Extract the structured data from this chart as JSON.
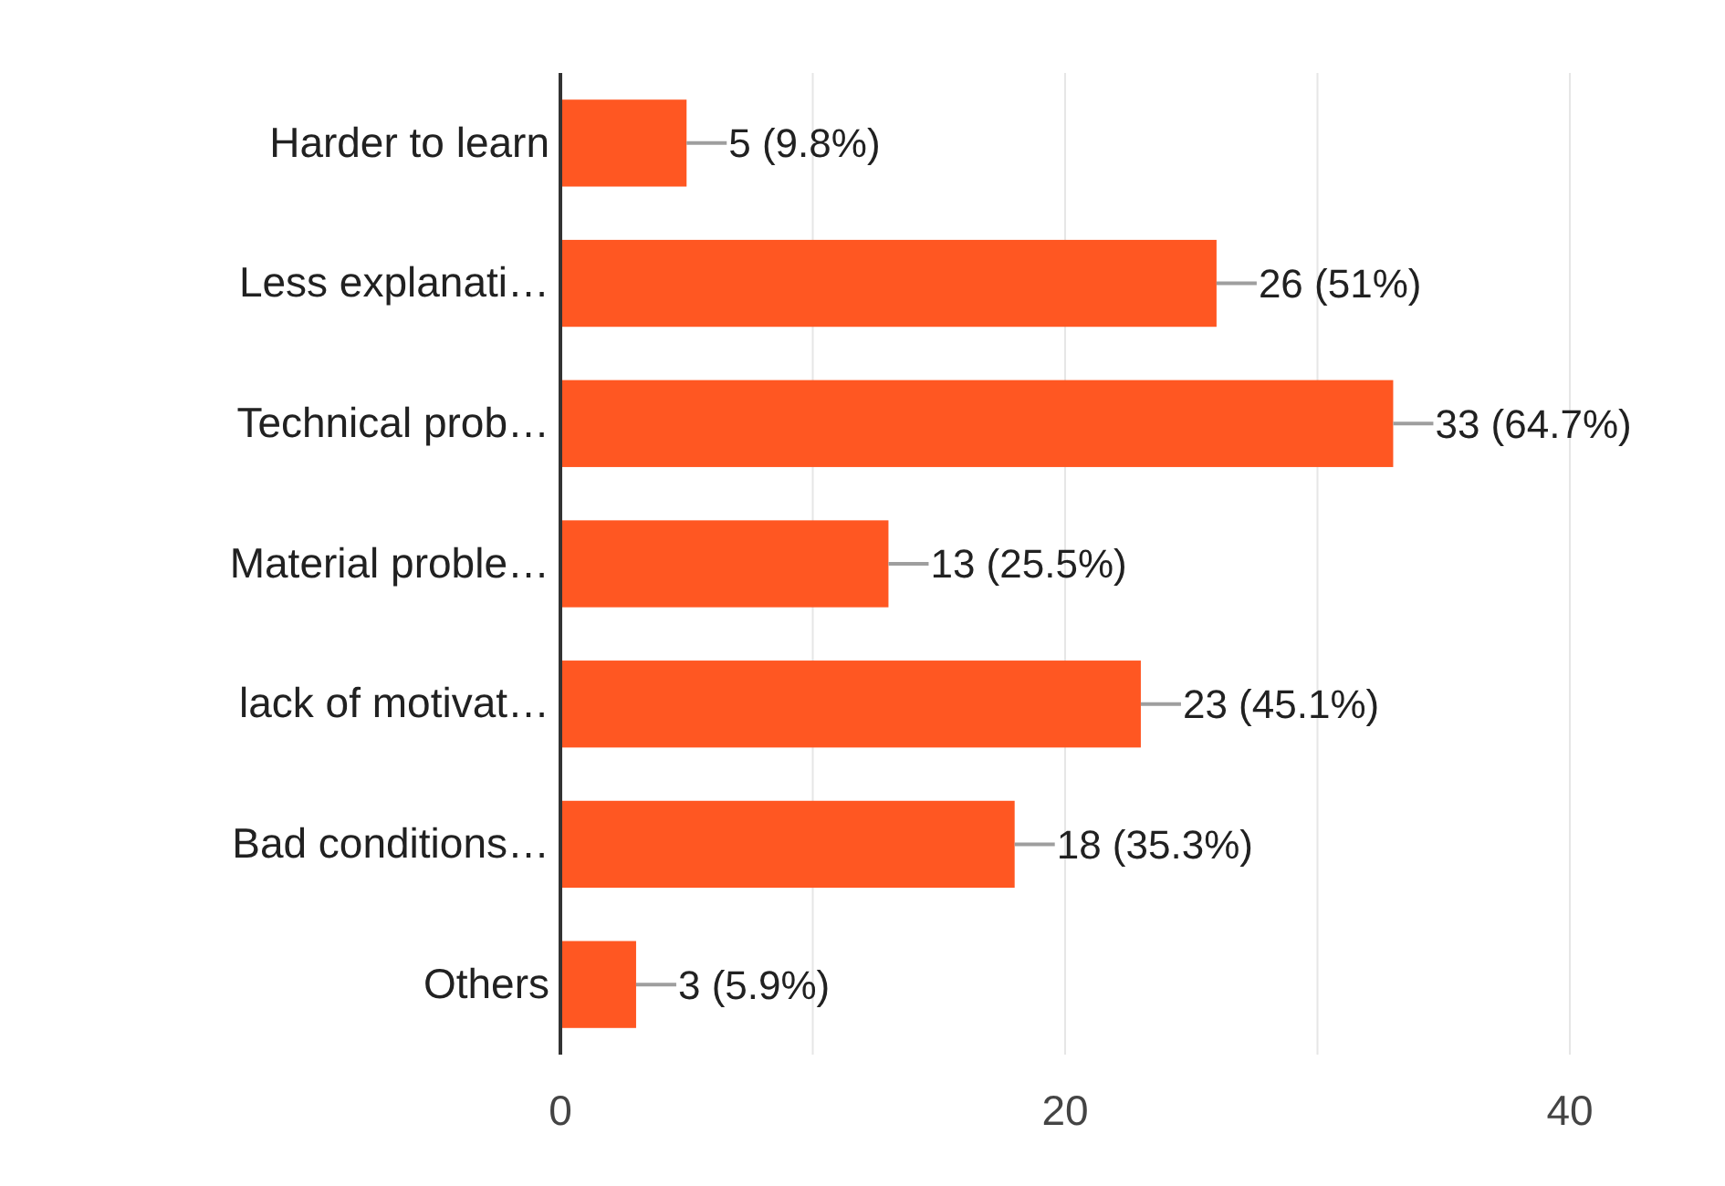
{
  "chart_data": {
    "type": "bar",
    "orientation": "horizontal",
    "categories": [
      "Harder to learn",
      "Less explanati…",
      "Technical prob…",
      "Material proble…",
      "lack of motivat…",
      "Bad conditions…",
      "Others"
    ],
    "values": [
      5,
      26,
      33,
      13,
      23,
      18,
      3
    ],
    "value_labels": [
      "5 (9.8%)",
      "26 (51%)",
      "33 (64.7%)",
      "13 (25.5%)",
      "23 (45.1%)",
      "18 (35.3%)",
      "3 (5.9%)"
    ],
    "color": "#ff5722",
    "xlim": [
      0,
      40
    ],
    "xticks": [
      0,
      {
        "value": 10,
        "label": null
      },
      20,
      {
        "value": 30,
        "label": null
      },
      40
    ],
    "grid": "x"
  }
}
